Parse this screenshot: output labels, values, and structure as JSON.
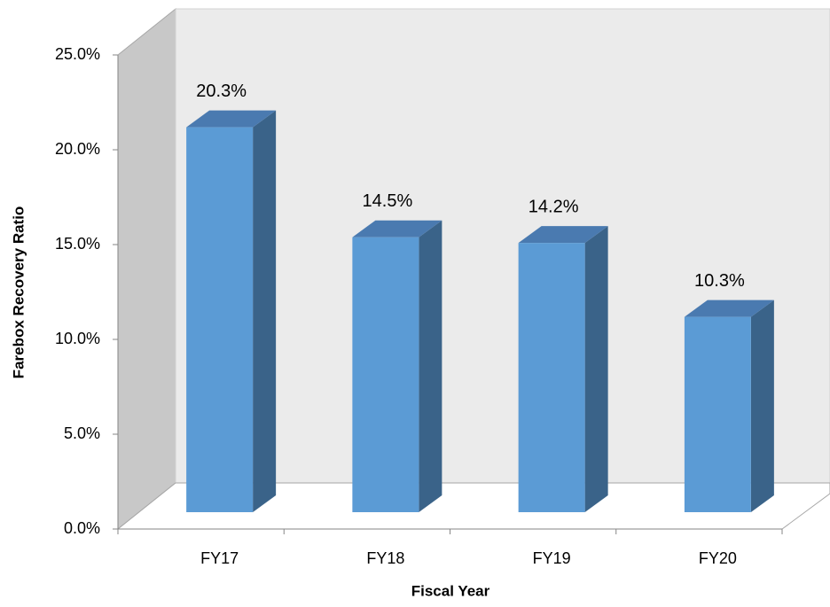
{
  "chart_data": {
    "type": "bar3d",
    "xlabel": "Fiscal Year",
    "ylabel": "Farebox Recovery Ratio",
    "categories": [
      "FY17",
      "FY18",
      "FY19",
      "FY20"
    ],
    "values": [
      20.3,
      14.5,
      14.2,
      10.3
    ],
    "value_labels": [
      "20.3%",
      "14.5%",
      "14.2%",
      "10.3%"
    ],
    "color": "#5b9bd5",
    "ylim": [
      0,
      25
    ],
    "yticks": [
      {
        "value": 0,
        "label": "0.0%"
      },
      {
        "value": 5,
        "label": "5.0%"
      },
      {
        "value": 10,
        "label": "10.0%"
      },
      {
        "value": 15,
        "label": "15.0%"
      },
      {
        "value": 20,
        "label": "20.0%"
      },
      {
        "value": 25,
        "label": "25.0%"
      }
    ]
  }
}
